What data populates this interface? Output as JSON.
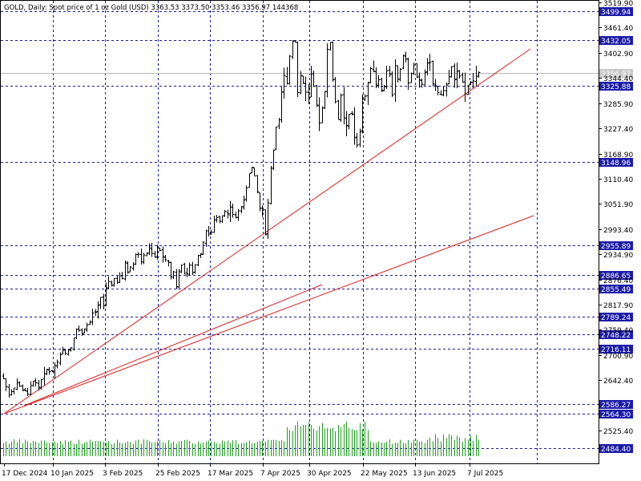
{
  "header": {
    "symbol_line": "GOLD, Daily:  Spot price of 1 oz Gold (USD)  3363.53 3373.50 3353.46 3356.97  144368"
  },
  "colors": {
    "grid": "#1a1a9c",
    "level_label_bg": "#1b1ba8",
    "trendline": "#e02020",
    "volume": "#22a022",
    "price_bars": "#000000",
    "current_price_bg": "#c8c8c8"
  },
  "chart_data": {
    "type": "ohlc",
    "y_range": [
      2466.0,
      3519.9
    ],
    "y_ticks": [
      "3519.90",
      "3461.40",
      "3402.90",
      "3344.40",
      "3285.90",
      "3227.40",
      "3168.90",
      "3110.40",
      "3051.90",
      "2993.40",
      "2934.90",
      "2876.40",
      "2817.90",
      "2759.40",
      "2700.90",
      "2642.40",
      "2525.40"
    ],
    "x_labels": [
      "17 Dec 2024",
      "10 Jan 2025",
      "3 Feb 2025",
      "25 Feb 2025",
      "17 Mar 2025",
      "7 Apr 2025",
      "30 Apr 2025",
      "22 May 2025",
      "13 Jun 2025",
      "7 Jul 2025"
    ],
    "levels": [
      "3499.94",
      "3432.05",
      "3325.88",
      "3148.96",
      "2955.89",
      "2886.65",
      "2855.49",
      "2789.24",
      "2748.22",
      "2716.11",
      "2586.27",
      "2564.30",
      "2484.40"
    ],
    "current_price": "3356.97",
    "last_bar": {
      "open": 3363.53,
      "high": 3373.5,
      "low": 3353.46,
      "close": 3356.97,
      "volume": 144368
    },
    "trendlines": 3,
    "grid": true,
    "closes": [
      2646,
      2627,
      2608,
      2616,
      2624,
      2636,
      2629,
      2619,
      2618,
      2610,
      2630,
      2640,
      2636,
      2626,
      2644,
      2657,
      2668,
      2662,
      2664,
      2676,
      2685,
      2702,
      2714,
      2705,
      2714,
      2717,
      2741,
      2760,
      2758,
      2750,
      2762,
      2770,
      2777,
      2798,
      2800,
      2816,
      2835,
      2815,
      2857,
      2872,
      2862,
      2878,
      2869,
      2885,
      2878,
      2917,
      2892,
      2905,
      2912,
      2934,
      2935,
      2918,
      2933,
      2937,
      2950,
      2937,
      2928,
      2950,
      2944,
      2930,
      2922,
      2916,
      2882,
      2894,
      2860,
      2896,
      2909,
      2889,
      2890,
      2910,
      2892,
      2911,
      2932,
      2936,
      2963,
      2989,
      2982,
      2986,
      3015,
      3020,
      3012,
      3025,
      3035,
      3029,
      3045,
      3027,
      3020,
      3036,
      3046,
      3060,
      3089,
      3122,
      3137,
      3117,
      3080,
      3041,
      3037,
      2981,
      3054,
      3135,
      3176,
      3230,
      3247,
      3311,
      3350,
      3332,
      3395,
      3430,
      3428,
      3310,
      3350,
      3333,
      3311,
      3299,
      3352,
      3325,
      3282,
      3240,
      3274,
      3313,
      3411,
      3427,
      3340,
      3289,
      3248,
      3304,
      3252,
      3234,
      3260,
      3260,
      3205,
      3188,
      3219,
      3295,
      3302,
      3335,
      3366,
      3360,
      3330,
      3340,
      3316,
      3325,
      3361,
      3352,
      3305,
      3373,
      3342,
      3364,
      3397,
      3388,
      3333,
      3354,
      3375,
      3346,
      3340,
      3330,
      3357,
      3378,
      3380,
      3331,
      3326,
      3310,
      3305,
      3315,
      3328,
      3348,
      3370,
      3340,
      3360,
      3349,
      3335,
      3308,
      3326,
      3335,
      3337,
      3348,
      3357
    ]
  }
}
